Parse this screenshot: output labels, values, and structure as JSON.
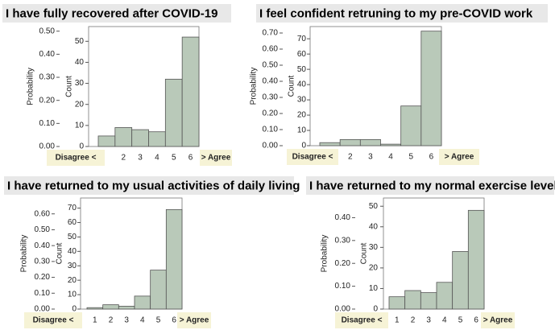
{
  "chart_data": [
    {
      "type": "bar",
      "title": "I have fully recovered after COVID-19",
      "categories": [
        null,
        "2",
        "3",
        "4",
        "5",
        "6"
      ],
      "values": [
        5,
        9,
        8,
        7,
        32,
        52
      ],
      "color": "#b9c9b9",
      "ylabel": "Count",
      "ylim": [
        0,
        57
      ],
      "yticks": [
        0,
        10,
        20,
        30,
        40,
        50
      ],
      "y2label": "Probability",
      "y2lim": [
        0,
        0.52
      ],
      "y2ticks": [
        {
          "value": 0,
          "label": "0.00"
        },
        {
          "value": 0.1,
          "label": "0.10"
        },
        {
          "value": 0.2,
          "label": "0.20"
        },
        {
          "value": 0.3,
          "label": "0.30"
        },
        {
          "value": 0.4,
          "label": "0.40"
        },
        {
          "value": 0.5,
          "label": "0.50"
        }
      ],
      "annotations": [
        "Disagree <",
        "> Agree"
      ]
    },
    {
      "type": "bar",
      "title": "I feel confident retruning to my pre-COVID work",
      "categories": [
        "1",
        "2",
        "3",
        "4",
        "5",
        "6"
      ],
      "values": [
        2,
        4,
        4,
        1,
        26,
        75
      ],
      "color": "#b9c9b9",
      "ylabel": "Count",
      "ylim": [
        0,
        78
      ],
      "yticks": [
        0,
        10,
        20,
        30,
        40,
        50,
        60,
        70
      ],
      "y2label": "Probability",
      "y2lim": [
        0,
        0.74
      ],
      "y2ticks": [
        {
          "value": 0,
          "label": "0.00"
        },
        {
          "value": 0.1,
          "label": "0.10"
        },
        {
          "value": 0.2,
          "label": "0.20"
        },
        {
          "value": 0.3,
          "label": "0.30"
        },
        {
          "value": 0.4,
          "label": "0.40"
        },
        {
          "value": 0.5,
          "label": "0.50"
        },
        {
          "value": 0.6,
          "label": "0.60"
        },
        {
          "value": 0.7,
          "label": "0.70"
        }
      ],
      "annotations": [
        "Disagree <",
        "> Agree"
      ]
    },
    {
      "type": "bar",
      "title": "I have returned to my usual activities of daily living",
      "categories": [
        "1",
        "2",
        "3",
        "4",
        "5",
        "6"
      ],
      "values": [
        1,
        3,
        2,
        9,
        27,
        69
      ],
      "color": "#b9c9b9",
      "ylabel": "Count",
      "ylim": [
        0,
        77
      ],
      "yticks": [
        0,
        10,
        20,
        30,
        40,
        50,
        60,
        70
      ],
      "y2label": "Probability",
      "y2lim": [
        0,
        0.7
      ],
      "y2ticks": [
        {
          "value": 0,
          "label": "0.00"
        },
        {
          "value": 0.1,
          "label": "0.10"
        },
        {
          "value": 0.2,
          "label": "0.20"
        },
        {
          "value": 0.3,
          "label": "0.30"
        },
        {
          "value": 0.4,
          "label": "0.40"
        },
        {
          "value": 0.5,
          "label": "0.50"
        },
        {
          "value": 0.6,
          "label": "0.60"
        }
      ],
      "annotations": [
        "Disagree <",
        "> Agree"
      ]
    },
    {
      "type": "bar",
      "title": "I have returned to my normal exercise level",
      "categories": [
        "1",
        "2",
        "3",
        "4",
        "5",
        "6"
      ],
      "values": [
        6,
        9,
        8,
        13,
        28,
        48
      ],
      "color": "#b9c9b9",
      "ylabel": "Count",
      "ylim": [
        0,
        54
      ],
      "yticks": [
        0,
        10,
        20,
        30,
        40,
        50
      ],
      "y2label": "Probability",
      "y2lim": [
        0,
        0.486
      ],
      "y2ticks": [
        {
          "value": 0,
          "label": "0.00"
        },
        {
          "value": 0.1,
          "label": "0.10"
        },
        {
          "value": 0.2,
          "label": "0.20"
        },
        {
          "value": 0.3,
          "label": "0.30"
        },
        {
          "value": 0.4,
          "label": "0.40"
        }
      ],
      "annotations": [
        "Disagree <",
        "> Agree"
      ]
    }
  ]
}
